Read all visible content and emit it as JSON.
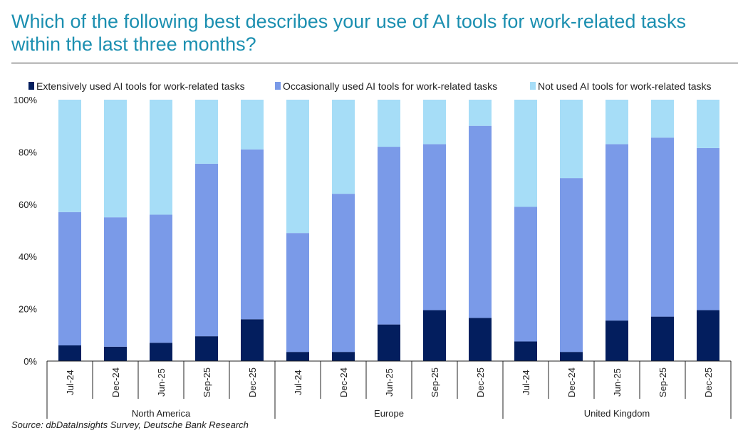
{
  "title": "Which of the following best describes your use of AI tools for work-related tasks within the last three months?",
  "source": "Source: dbDataInsights Survey, Deutsche Bank Research",
  "colors": {
    "extensive": "#031e5e",
    "occasional": "#7a9ae8",
    "not_used": "#a6ddf7",
    "title": "#1b8fb0"
  },
  "chart_data": {
    "type": "bar",
    "stacked": true,
    "categories": [
      "Jul-24",
      "Dec-24",
      "Jun-25",
      "Sep-25",
      "Dec-25",
      "Jul-24",
      "Dec-24",
      "Jun-25",
      "Sep-25",
      "Dec-25",
      "Jul-24",
      "Dec-24",
      "Jun-25",
      "Sep-25",
      "Dec-25"
    ],
    "groups": [
      {
        "name": "North America",
        "count": 5
      },
      {
        "name": "Europe",
        "count": 5
      },
      {
        "name": "United Kingdom",
        "count": 5
      }
    ],
    "series": [
      {
        "name": "Extensively used AI tools for work-related tasks",
        "key": "extensive",
        "values": [
          6,
          5.5,
          7,
          9.5,
          16,
          3.5,
          3.5,
          14,
          19.5,
          16.5,
          7.5,
          3.5,
          15.5,
          17,
          19.5
        ]
      },
      {
        "name": "Occasionally used AI tools for work-related tasks",
        "key": "occasional",
        "values": [
          51,
          49.5,
          49,
          66,
          65,
          45.5,
          60.5,
          68,
          63.5,
          73.5,
          51.5,
          66.5,
          67.5,
          68.5,
          62
        ]
      },
      {
        "name": "Not used AI tools for work-related tasks",
        "key": "not_used",
        "values": [
          43,
          45,
          44,
          24.5,
          19,
          51,
          36,
          18,
          17,
          10,
          41,
          30,
          17,
          14.5,
          18.5
        ]
      }
    ],
    "y_ticks": [
      "0%",
      "20%",
      "40%",
      "60%",
      "80%",
      "100%"
    ],
    "ylim": [
      0,
      100
    ],
    "legend_position": "top"
  }
}
